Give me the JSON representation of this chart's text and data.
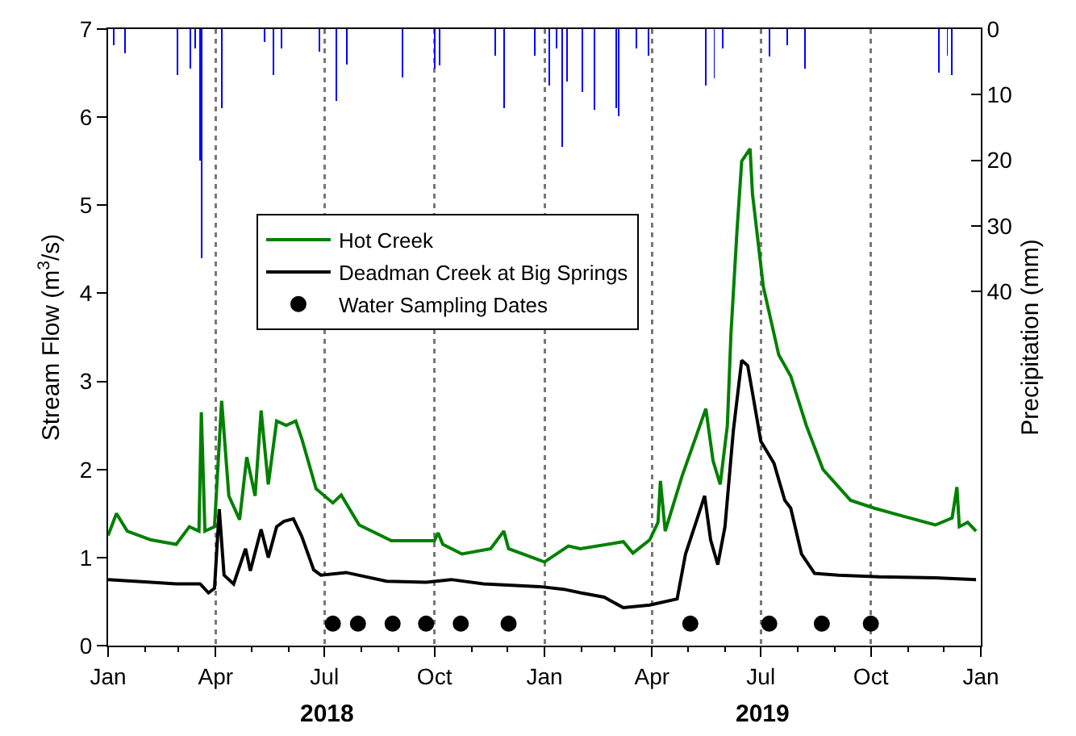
{
  "chart_data": {
    "type": "line",
    "ylabel": "Stream Flow (m$^{3}$/s)",
    "y2label": "Precipitation (mm)",
    "xlim": [
      "2018-01-01",
      "2020-01-01"
    ],
    "xticks": [
      {
        "value": "2018-01-01",
        "label": "Jan"
      },
      {
        "value": "2018-04-01",
        "label": "Apr"
      },
      {
        "value": "2018-07-01",
        "label": "Jul"
      },
      {
        "value": "2018-10-01",
        "label": "Oct"
      },
      {
        "value": "2019-01-01",
        "label": "Jan"
      },
      {
        "value": "2019-04-01",
        "label": "Apr"
      },
      {
        "value": "2019-07-01",
        "label": "Jul"
      },
      {
        "value": "2019-10-01",
        "label": "Oct"
      },
      {
        "value": "2020-01-01",
        "label": "Jan"
      }
    ],
    "ylim": [
      0,
      7
    ],
    "yticks": [
      0,
      1,
      2,
      3,
      4,
      5,
      6,
      7
    ],
    "y2lim": [
      94,
      0
    ],
    "y2ticks": [
      0,
      10,
      20,
      30,
      40
    ],
    "grid": "x",
    "legend": "top left",
    "annotations": [
      "2018",
      "2019"
    ],
    "series": [
      {
        "type": "bar",
        "axis": "y2",
        "color": "#0000ff",
        "x": [
          "2018-01-06",
          "2018-01-15",
          "2018-02-28",
          "2018-03-11",
          "2018-03-15",
          "2018-03-19",
          "2018-03-20",
          "2018-04-06",
          "2018-05-12",
          "2018-05-19",
          "2018-05-26",
          "2018-06-27",
          "2018-07-11",
          "2018-07-20",
          "2018-09-04",
          "2018-10-01",
          "2018-10-05",
          "2018-11-21",
          "2018-11-28",
          "2018-12-24",
          "2019-01-05",
          "2019-01-11",
          "2019-01-16",
          "2019-01-20",
          "2019-02-02",
          "2019-02-12",
          "2019-03-02",
          "2019-03-04",
          "2019-03-19",
          "2019-03-29",
          "2019-05-16",
          "2019-05-23",
          "2019-05-30",
          "2019-07-08",
          "2019-07-23",
          "2019-08-07",
          "2019-11-27",
          "2019-12-04",
          "2019-12-08"
        ],
        "values": [
          2.5,
          3.7,
          7,
          6,
          3,
          20,
          35,
          12,
          2,
          7,
          3,
          3.5,
          11,
          5.4,
          7.4,
          6,
          5.5,
          4,
          12,
          4,
          8.6,
          3,
          18,
          8,
          9.6,
          12.3,
          12,
          13.3,
          3,
          4,
          8.6,
          7.5,
          3,
          4.2,
          2.5,
          6,
          6.6,
          4,
          7
        ]
      },
      {
        "name": "Hot Creek",
        "color": "#008000",
        "x": [
          "2018-01-01",
          "2018-01-08",
          "2018-01-17",
          "2018-02-06",
          "2018-02-27",
          "2018-03-10",
          "2018-03-18",
          "2018-03-20",
          "2018-03-23",
          "2018-03-31",
          "2018-04-06",
          "2018-04-12",
          "2018-04-21",
          "2018-04-27",
          "2018-05-04",
          "2018-05-09",
          "2018-05-15",
          "2018-05-22",
          "2018-05-30",
          "2018-06-07",
          "2018-06-12",
          "2018-06-24",
          "2018-07-08",
          "2018-07-15",
          "2018-07-30",
          "2018-08-26",
          "2018-10-01",
          "2018-10-04",
          "2018-10-08",
          "2018-10-24",
          "2018-11-17",
          "2018-11-28",
          "2018-12-02",
          "2019-01-01",
          "2019-01-21",
          "2019-01-31",
          "2019-03-08",
          "2019-03-16",
          "2019-03-30",
          "2019-04-06",
          "2019-04-08",
          "2019-04-12",
          "2019-04-26",
          "2019-05-09",
          "2019-05-16",
          "2019-05-22",
          "2019-05-28",
          "2019-06-03",
          "2019-06-06",
          "2019-06-11",
          "2019-06-15",
          "2019-06-22",
          "2019-06-24",
          "2019-07-03",
          "2019-07-16",
          "2019-07-26",
          "2019-08-08",
          "2019-08-22",
          "2019-09-14",
          "2019-10-04",
          "2019-10-28",
          "2019-11-24",
          "2019-12-08",
          "2019-12-12",
          "2019-12-14",
          "2019-12-21",
          "2019-12-28"
        ],
        "values": [
          1.25,
          1.5,
          1.3,
          1.2,
          1.15,
          1.35,
          1.3,
          2.65,
          1.3,
          1.35,
          2.78,
          1.7,
          1.43,
          2.14,
          1.7,
          2.67,
          1.83,
          2.55,
          2.5,
          2.55,
          2.35,
          1.78,
          1.62,
          1.71,
          1.37,
          1.19,
          1.19,
          1.28,
          1.15,
          1.04,
          1.1,
          1.3,
          1.1,
          0.95,
          1.13,
          1.1,
          1.18,
          1.05,
          1.2,
          1.4,
          1.87,
          1.3,
          1.92,
          2.42,
          2.69,
          2.1,
          1.83,
          2.5,
          3.54,
          4.7,
          5.5,
          5.64,
          5.13,
          4.08,
          3.3,
          3.06,
          2.5,
          2.0,
          1.65,
          1.56,
          1.47,
          1.37,
          1.45,
          1.8,
          1.35,
          1.4,
          1.3
        ]
      },
      {
        "name": "Deadman Creek at Big Springs",
        "color": "#000000",
        "x": [
          "2018-01-01",
          "2018-02-06",
          "2018-02-27",
          "2018-03-19",
          "2018-03-26",
          "2018-03-31",
          "2018-04-04",
          "2018-04-08",
          "2018-04-16",
          "2018-04-26",
          "2018-04-30",
          "2018-05-09",
          "2018-05-15",
          "2018-05-22",
          "2018-05-28",
          "2018-06-05",
          "2018-06-12",
          "2018-06-22",
          "2018-06-28",
          "2018-07-19",
          "2018-08-22",
          "2018-09-24",
          "2018-10-15",
          "2018-11-11",
          "2018-12-28",
          "2019-01-17",
          "2019-01-31",
          "2019-02-20",
          "2019-03-08",
          "2019-03-30",
          "2019-04-22",
          "2019-04-29",
          "2019-05-08",
          "2019-05-15",
          "2019-05-20",
          "2019-05-26",
          "2019-06-01",
          "2019-06-08",
          "2019-06-15",
          "2019-06-20",
          "2019-06-24",
          "2019-07-01",
          "2019-07-12",
          "2019-07-21",
          "2019-07-26",
          "2019-08-04",
          "2019-08-15",
          "2019-09-04",
          "2019-10-08",
          "2019-11-24",
          "2019-12-28"
        ],
        "values": [
          0.75,
          0.72,
          0.7,
          0.7,
          0.6,
          0.65,
          1.55,
          0.8,
          0.7,
          1.1,
          0.85,
          1.32,
          1.0,
          1.35,
          1.41,
          1.44,
          1.24,
          0.86,
          0.8,
          0.83,
          0.73,
          0.72,
          0.75,
          0.7,
          0.67,
          0.64,
          0.6,
          0.55,
          0.43,
          0.46,
          0.53,
          1.04,
          1.41,
          1.7,
          1.2,
          0.92,
          1.35,
          2.44,
          3.24,
          3.18,
          2.87,
          2.32,
          2.07,
          1.65,
          1.56,
          1.04,
          0.82,
          0.8,
          0.78,
          0.77,
          0.75
        ]
      },
      {
        "name": "Water Sampling Dates",
        "type": "scatter",
        "marker": "circle",
        "color": "#000000",
        "x": [
          "2018-07-08",
          "2018-07-29",
          "2018-08-27",
          "2018-09-24",
          "2018-10-23",
          "2018-12-02",
          "2019-05-03",
          "2019-07-08",
          "2019-08-21",
          "2019-10-01"
        ],
        "values": [
          0.25,
          0.25,
          0.25,
          0.25,
          0.25,
          0.25,
          0.25,
          0.25,
          0.25,
          0.25
        ]
      }
    ]
  }
}
